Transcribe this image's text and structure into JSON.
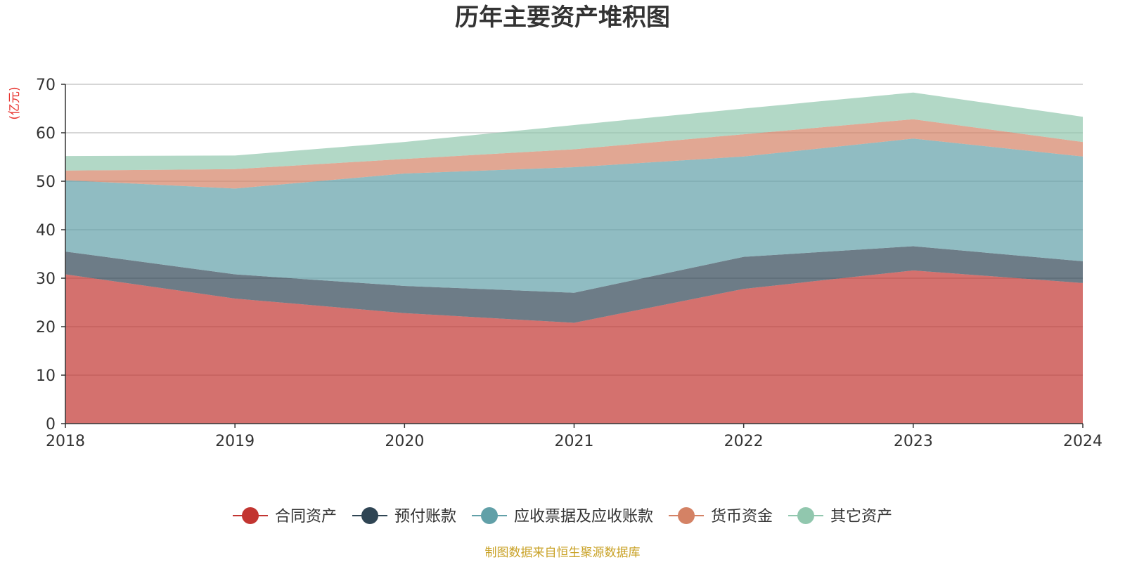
{
  "chart_data": {
    "type": "area",
    "stacked": true,
    "title": "历年主要资产堆积图",
    "unit_label": "(亿元)",
    "source": "制图数据来自恒生聚源数据库",
    "x": [
      "2018",
      "2019",
      "2020",
      "2021",
      "2022",
      "2023",
      "2024"
    ],
    "ylim": [
      0,
      70
    ],
    "yticks": [
      0,
      10,
      20,
      30,
      40,
      50,
      60,
      70
    ],
    "grid": true,
    "legend_position": "bottom",
    "series": [
      {
        "name": "合同资产",
        "color": "#c23531",
        "values": [
          30.8,
          25.8,
          22.8,
          20.8,
          27.8,
          31.6,
          29.0
        ]
      },
      {
        "name": "预付账款",
        "color": "#2f4554",
        "values": [
          4.7,
          5.0,
          5.6,
          6.2,
          6.6,
          5.0,
          4.5
        ]
      },
      {
        "name": "应收票据及应收账款",
        "color": "#61a0a8",
        "values": [
          14.7,
          17.7,
          23.2,
          25.9,
          20.7,
          22.2,
          21.6
        ]
      },
      {
        "name": "货币资金",
        "color": "#d48265",
        "values": [
          2.0,
          4.0,
          3.0,
          3.7,
          4.6,
          4.0,
          3.0
        ]
      },
      {
        "name": "其它资产",
        "color": "#91c7ae",
        "values": [
          3.0,
          2.8,
          3.5,
          5.0,
          5.3,
          5.5,
          5.2
        ]
      }
    ]
  }
}
